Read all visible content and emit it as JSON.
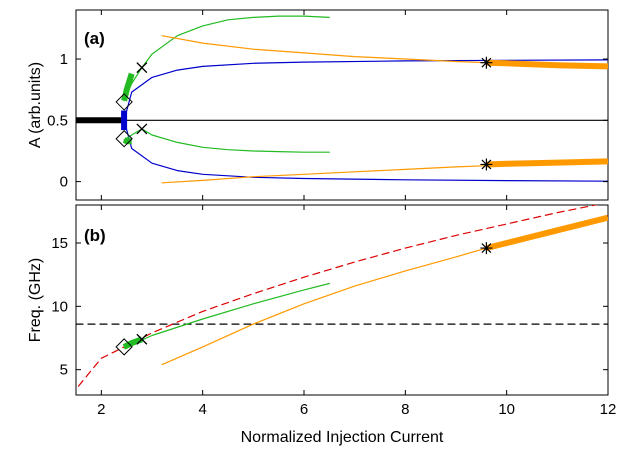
{
  "chart_data": [
    {
      "panel_label": "(a)",
      "type": "line",
      "xlabel": "",
      "ylabel": "A (arb.units)",
      "xlim": [
        1.5,
        12
      ],
      "ylim": [
        -0.15,
        1.4
      ],
      "xticks": [
        2,
        4,
        6,
        8,
        10,
        12
      ],
      "yticks": [
        0,
        0.5,
        1
      ],
      "ytick_labels": [
        "0",
        "0.5",
        "1"
      ],
      "grid": false,
      "colors": {
        "black": "#000000",
        "blue": "#0000cc",
        "green": "#22bb22",
        "orange": "#ff9900"
      },
      "series": [
        {
          "color": "black",
          "thick": false,
          "x": [
            1.5,
            12
          ],
          "y": [
            0.5,
            0.5
          ]
        },
        {
          "color": "black",
          "thick": true,
          "x": [
            1.5,
            2.4
          ],
          "y": [
            0.5,
            0.5
          ]
        },
        {
          "color": "blue",
          "thick": false,
          "x": [
            2.45,
            2.6,
            3.0,
            3.5,
            4.0,
            5.0,
            6.0,
            8.0,
            10.0,
            12.0
          ],
          "y": [
            0.5,
            0.73,
            0.85,
            0.91,
            0.94,
            0.965,
            0.975,
            0.985,
            0.99,
            0.993
          ]
        },
        {
          "color": "blue",
          "thick": false,
          "x": [
            2.45,
            2.6,
            3.0,
            3.5,
            4.0,
            5.0,
            6.0,
            8.0,
            10.0,
            12.0
          ],
          "y": [
            0.5,
            0.27,
            0.15,
            0.09,
            0.06,
            0.035,
            0.025,
            0.015,
            0.008,
            0.003
          ]
        },
        {
          "color": "blue",
          "thick": true,
          "x": [
            2.45,
            2.45
          ],
          "y": [
            0.42,
            0.58
          ]
        },
        {
          "color": "green",
          "thick": false,
          "x": [
            2.45,
            2.6,
            2.8,
            3.0,
            3.5,
            4.0,
            4.5,
            5.0,
            5.5,
            6.0,
            6.5
          ],
          "y": [
            0.66,
            0.8,
            0.93,
            1.04,
            1.19,
            1.27,
            1.32,
            1.34,
            1.35,
            1.35,
            1.34
          ]
        },
        {
          "color": "green",
          "thick": false,
          "x": [
            2.45,
            2.6,
            2.8,
            3.0,
            3.5,
            4.0,
            4.5,
            5.0,
            5.5,
            6.0,
            6.5
          ],
          "y": [
            0.34,
            0.38,
            0.43,
            0.38,
            0.32,
            0.28,
            0.26,
            0.25,
            0.245,
            0.24,
            0.24
          ]
        },
        {
          "color": "green",
          "thick": true,
          "x": [
            2.45,
            2.5,
            2.6
          ],
          "y": [
            0.66,
            0.75,
            0.88
          ]
        },
        {
          "color": "green",
          "thick": true,
          "x": [
            2.45,
            2.5,
            2.6
          ],
          "y": [
            0.34,
            0.33,
            0.33
          ]
        },
        {
          "color": "orange",
          "thick": false,
          "x": [
            3.2,
            4.0,
            5.0,
            6.0,
            7.0,
            8.0,
            9.0,
            9.6
          ],
          "y": [
            1.19,
            1.13,
            1.08,
            1.05,
            1.02,
            1.0,
            0.98,
            0.97
          ]
        },
        {
          "color": "orange",
          "thick": false,
          "x": [
            3.2,
            4.0,
            5.0,
            6.0,
            7.0,
            8.0,
            9.0,
            9.6
          ],
          "y": [
            -0.01,
            0.01,
            0.04,
            0.06,
            0.08,
            0.1,
            0.12,
            0.13
          ]
        },
        {
          "color": "orange",
          "thick": true,
          "x": [
            9.6,
            10.0,
            11.0,
            12.0
          ],
          "y": [
            0.97,
            0.965,
            0.95,
            0.94
          ]
        },
        {
          "color": "orange",
          "thick": true,
          "x": [
            9.6,
            10.0,
            11.0,
            12.0
          ],
          "y": [
            0.14,
            0.145,
            0.155,
            0.165
          ]
        }
      ],
      "markers": [
        {
          "symbol": "diamond",
          "x": 2.45,
          "y": 0.65
        },
        {
          "symbol": "diamond",
          "x": 2.45,
          "y": 0.35
        },
        {
          "symbol": "cross",
          "x": 2.8,
          "y": 0.93
        },
        {
          "symbol": "cross",
          "x": 2.8,
          "y": 0.43
        },
        {
          "symbol": "star",
          "x": 9.6,
          "y": 0.97
        },
        {
          "symbol": "star",
          "x": 9.6,
          "y": 0.14
        }
      ]
    },
    {
      "panel_label": "(b)",
      "type": "line",
      "xlabel": "Normalized Injection Current",
      "ylabel": "Freq. (GHz)",
      "xlim": [
        1.5,
        12
      ],
      "ylim": [
        3,
        18
      ],
      "xticks": [
        2,
        4,
        6,
        8,
        10,
        12
      ],
      "yticks": [
        5,
        10,
        15
      ],
      "ytick_labels": [
        "5",
        "10",
        "15"
      ],
      "grid": false,
      "colors": {
        "black": "#000000",
        "red": "#dd0000",
        "green": "#22bb22",
        "orange": "#ff9900"
      },
      "series": [
        {
          "color": "black",
          "dashed": true,
          "x": [
            1.5,
            12
          ],
          "y": [
            8.6,
            8.6
          ]
        },
        {
          "color": "red",
          "dashed": true,
          "x": [
            1.55,
            2.0,
            2.45,
            3.0,
            4.0,
            5.0,
            6.0,
            7.0,
            8.0,
            9.0,
            10.0,
            11.0,
            12.0
          ],
          "y": [
            3.7,
            5.9,
            6.8,
            7.9,
            9.6,
            11.0,
            12.3,
            13.5,
            14.6,
            15.6,
            16.5,
            17.4,
            18.2
          ]
        },
        {
          "color": "green",
          "x": [
            2.45,
            3.0,
            4.0,
            5.0,
            6.0,
            6.5
          ],
          "y": [
            6.7,
            7.7,
            9.0,
            10.2,
            11.3,
            11.8
          ]
        },
        {
          "color": "green",
          "thick": true,
          "x": [
            2.45,
            2.6,
            2.8
          ],
          "y": [
            6.8,
            7.1,
            7.4
          ]
        },
        {
          "color": "orange",
          "x": [
            3.2,
            4.0,
            5.0,
            6.0,
            7.0,
            8.0,
            9.0,
            9.6
          ],
          "y": [
            5.4,
            6.8,
            8.6,
            10.2,
            11.6,
            12.8,
            13.9,
            14.6
          ]
        },
        {
          "color": "orange",
          "thick": true,
          "x": [
            9.6,
            10.0,
            11.0,
            12.0
          ],
          "y": [
            14.6,
            15.0,
            16.0,
            17.0
          ]
        }
      ],
      "markers": [
        {
          "symbol": "diamond",
          "x": 2.45,
          "y": 6.8
        },
        {
          "symbol": "cross",
          "x": 2.8,
          "y": 7.4
        },
        {
          "symbol": "star",
          "x": 9.6,
          "y": 14.6
        }
      ]
    }
  ]
}
